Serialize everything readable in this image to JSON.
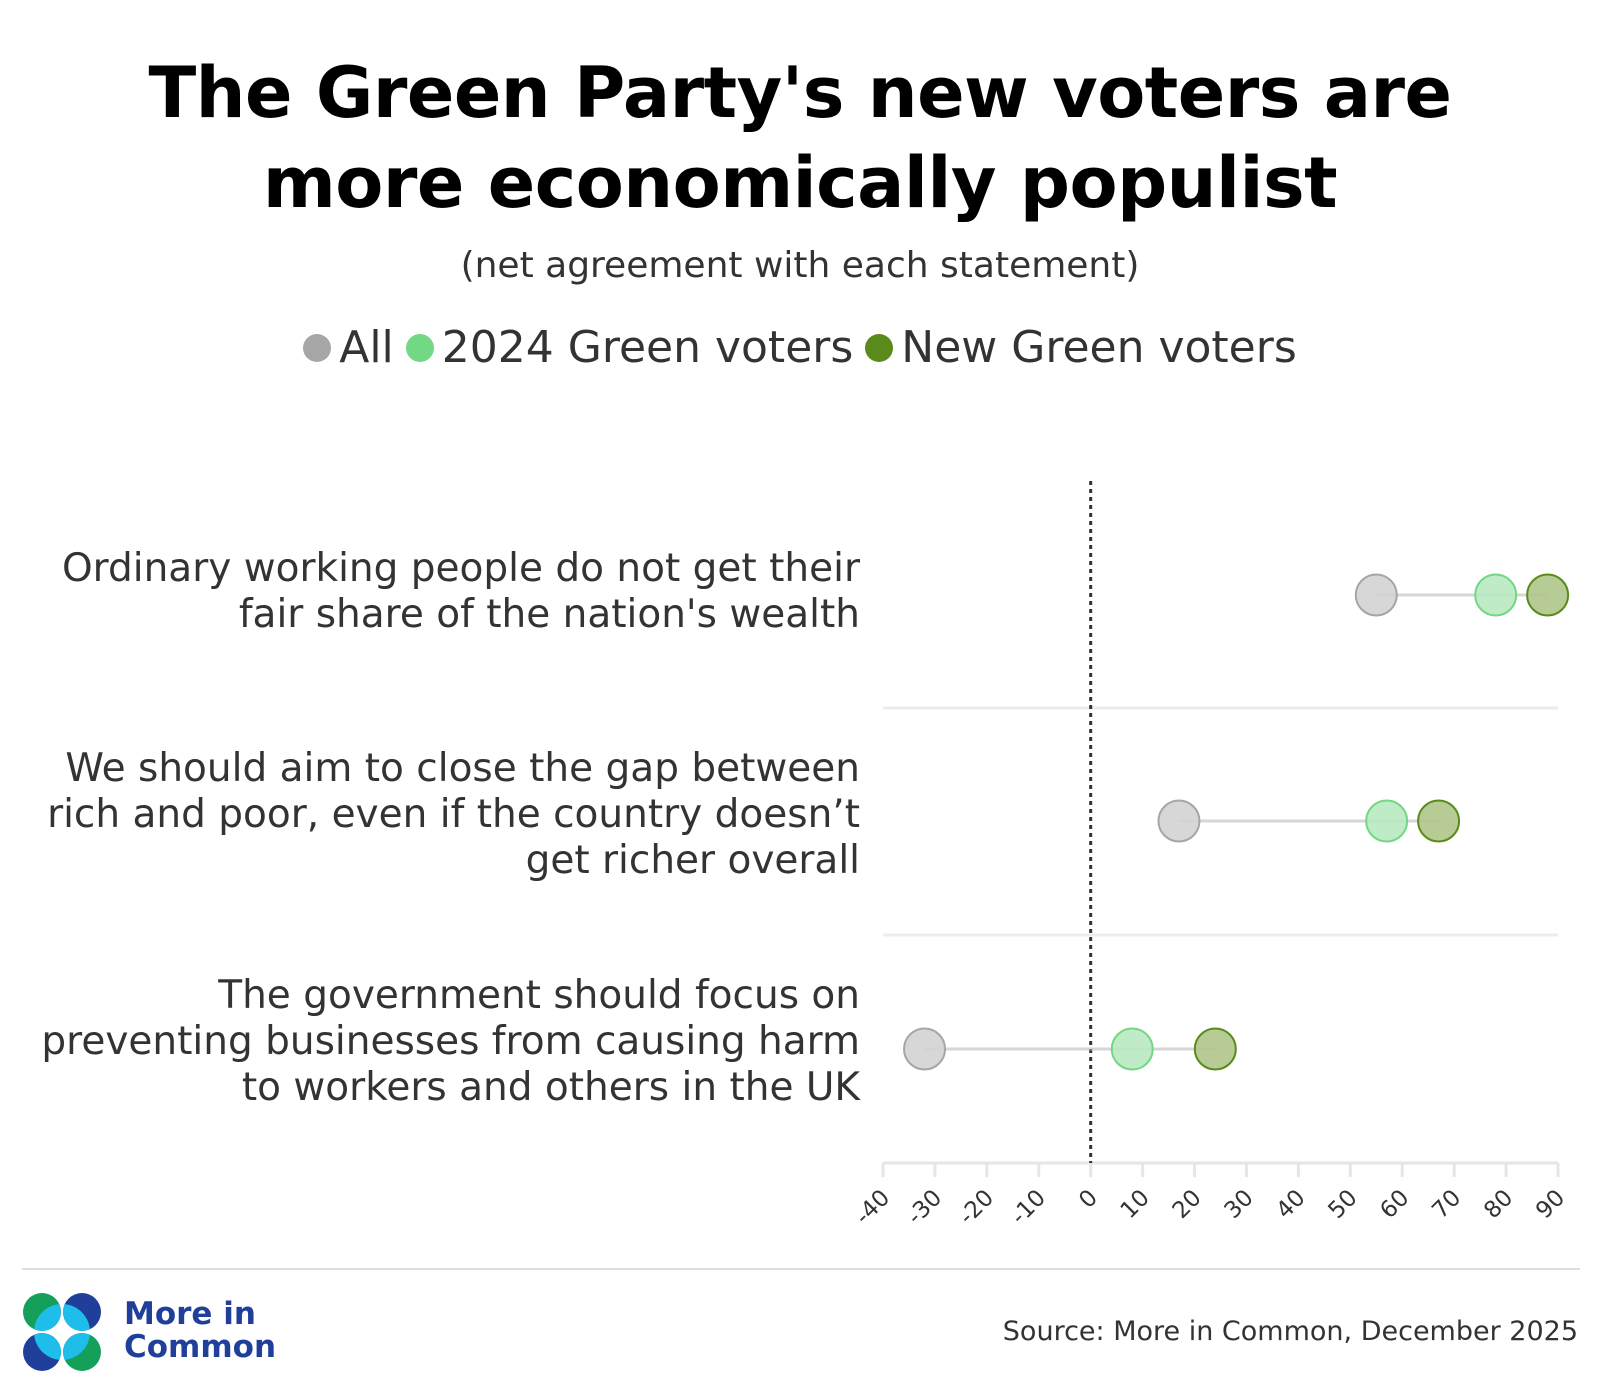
{
  "chart_data": {
    "type": "dot",
    "title": "The Green Party's new voters are more economically populist",
    "subtitle": "(net agreement with each statement)",
    "categories": [
      "Ordinary working people do not get their fair share of the nation's wealth",
      "We should aim to close the gap between rich and poor, even if the country doesn’t get richer overall",
      "The government should focus on preventing businesses from causing harm to workers and others in the UK"
    ],
    "category_lines": [
      [
        "Ordinary working people do not get their",
        "fair share of the nation's wealth"
      ],
      [
        "We should aim to close the gap between",
        "rich and poor, even if the country doesn’t",
        "get richer overall"
      ],
      [
        "The government should focus on",
        "preventing businesses from causing harm",
        "to workers and others in the UK"
      ]
    ],
    "series": [
      {
        "name": "All",
        "values": [
          55,
          17,
          -32
        ],
        "color": "#a6a6a6"
      },
      {
        "name": "2024 Green voters",
        "values": [
          78,
          57,
          8
        ],
        "color": "#72d884"
      },
      {
        "name": "New Green voters",
        "values": [
          88,
          67,
          24
        ],
        "color": "#5a8a1a"
      }
    ],
    "xlim": [
      -40,
      90
    ],
    "xticks": [
      "-40",
      "-30",
      "-20",
      "-10",
      "0",
      "10",
      "20",
      "30",
      "40",
      "50",
      "60",
      "70",
      "80",
      "90"
    ],
    "reference_line": 0,
    "legend": "top-center"
  },
  "logo": {
    "line1": "More in",
    "line2": "Common"
  },
  "source": "Source: More in Common, December 2025"
}
